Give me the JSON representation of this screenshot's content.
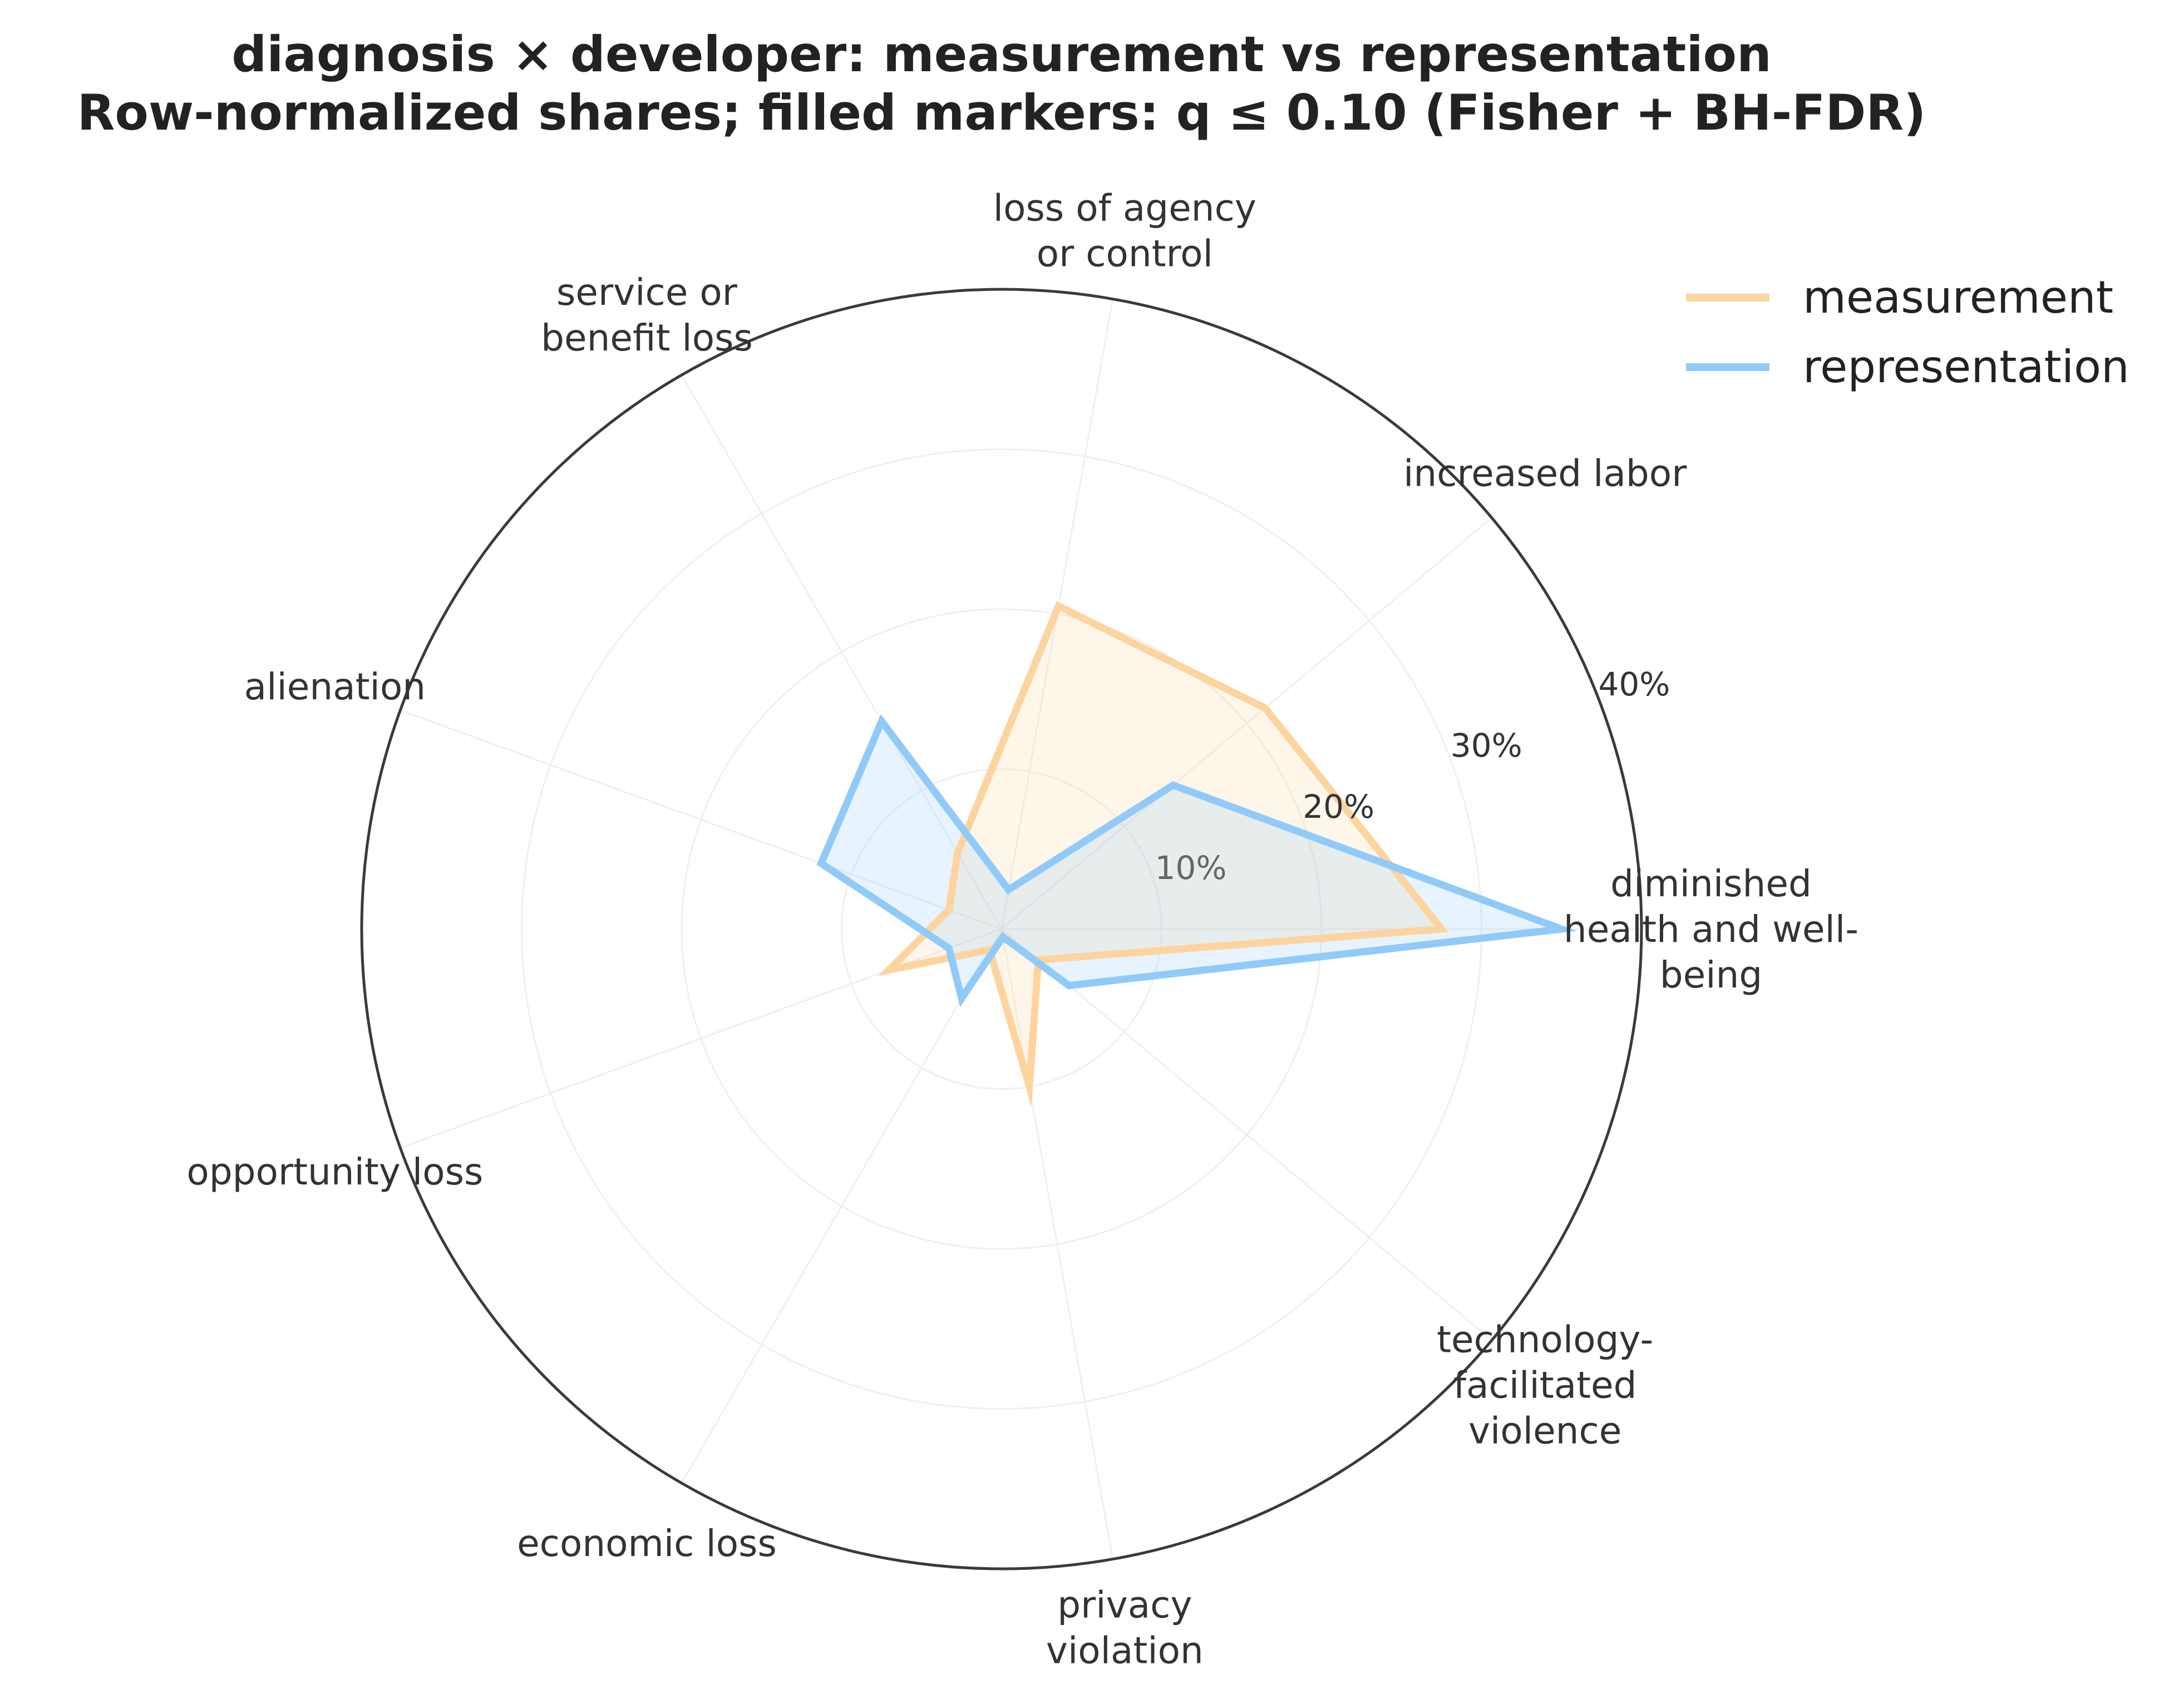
{
  "chart_data": {
    "type": "radar",
    "title_lines": [
      "diagnosis × developer: measurement vs representation",
      "Row-normalized shares; filled markers: q ≤ 0.10 (Fisher + BH-FDR)"
    ],
    "categories": [
      [
        "diminished",
        "health and well-",
        "being"
      ],
      [
        "increased labor"
      ],
      [
        "loss of agency",
        "or control"
      ],
      [
        "service or",
        "benefit loss"
      ],
      [
        "alienation"
      ],
      [
        "opportunity loss"
      ],
      [
        "economic loss"
      ],
      [
        "privacy",
        "violation"
      ],
      [
        "technology-",
        "facilitated",
        "violence"
      ]
    ],
    "rlim": [
      0,
      40
    ],
    "rticks": [
      10,
      20,
      30,
      40
    ],
    "rtick_labels": [
      "10%",
      "20%",
      "30%",
      "40%"
    ],
    "series": [
      {
        "name": "measurement",
        "color": "#FDD49E",
        "values": [
          27.5,
          21.5,
          20.5,
          5.5,
          3.5,
          7.5,
          1.5,
          10.0,
          3.0
        ]
      },
      {
        "name": "representation",
        "color": "#90CAF9",
        "values": [
          35.0,
          14.0,
          2.5,
          15.0,
          12.0,
          3.5,
          5.0,
          0.5,
          5.5
        ]
      }
    ],
    "legend_position": "top-right",
    "grid": true
  }
}
